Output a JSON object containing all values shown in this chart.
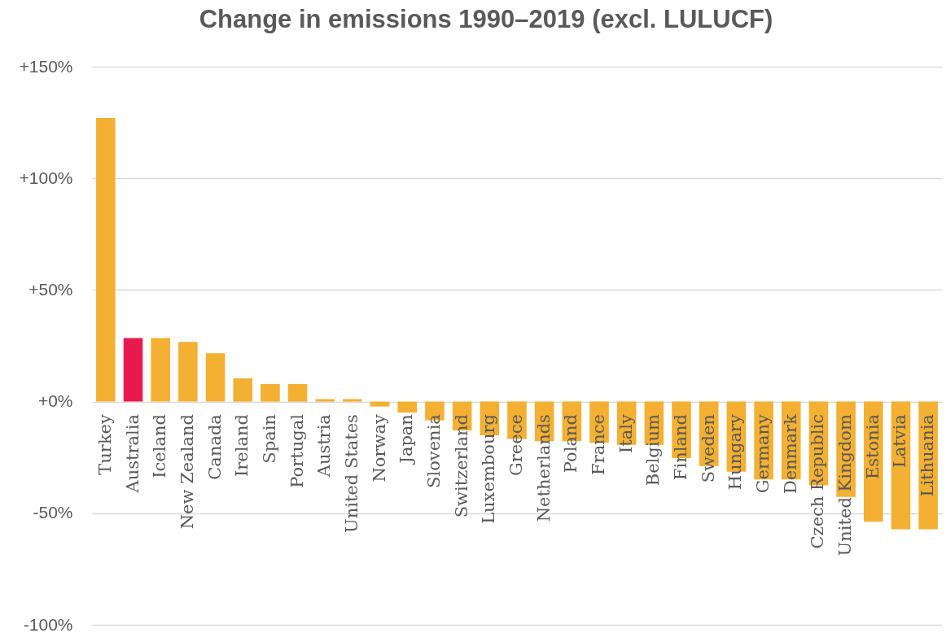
{
  "chart_data": {
    "type": "bar",
    "title": "Change in emissions 1990–2019 (excl. LULUCF)",
    "categories": [
      "Turkey",
      "Australia",
      "Iceland",
      "New Zealand",
      "Canada",
      "Ireland",
      "Spain",
      "Portugal",
      "Austria",
      "United States",
      "Norway",
      "Japan",
      "Slovenia",
      "Switzerland",
      "Luxembourg",
      "Greece",
      "Netherlands",
      "Poland",
      "France",
      "Italy",
      "Belgium",
      "Finland",
      "Sweden",
      "Hungary",
      "Germany",
      "Denmark",
      "Czech Republic",
      "United Kingdom",
      "Estonia",
      "Latvia",
      "Lithuania"
    ],
    "values": [
      127,
      28.5,
      28.5,
      26.7,
      21.6,
      10.4,
      7.9,
      7.9,
      1.1,
      1.1,
      -2.2,
      -4.9,
      -8.4,
      -12.9,
      -15.1,
      -16.7,
      -17.7,
      -17.7,
      -18.5,
      -19.4,
      -19.4,
      -25.3,
      -28.8,
      -31.4,
      -34.9,
      -34.9,
      -37.5,
      -42.7,
      -53.8,
      -57.2,
      -57.2
    ],
    "colors": [
      "#f4b032",
      "#e8194e",
      "#f4b032",
      "#f4b032",
      "#f4b032",
      "#f4b032",
      "#f4b032",
      "#f4b032",
      "#f4b032",
      "#f4b032",
      "#f4b032",
      "#f4b032",
      "#f4b032",
      "#f4b032",
      "#f4b032",
      "#f4b032",
      "#f4b032",
      "#f4b032",
      "#f4b032",
      "#f4b032",
      "#f4b032",
      "#f4b032",
      "#f4b032",
      "#f4b032",
      "#f4b032",
      "#f4b032",
      "#f4b032",
      "#f4b032",
      "#f4b032",
      "#f4b032",
      "#f4b032"
    ],
    "ylim": [
      -100,
      150
    ],
    "yticks": [
      {
        "value": 150,
        "label": "+150%"
      },
      {
        "value": 100,
        "label": "+100%"
      },
      {
        "value": 50,
        "label": "+50%"
      },
      {
        "value": 0,
        "label": "+0%"
      },
      {
        "value": -50,
        "label": "-50%"
      },
      {
        "value": -100,
        "label": "-100%"
      }
    ],
    "grid": "y"
  }
}
